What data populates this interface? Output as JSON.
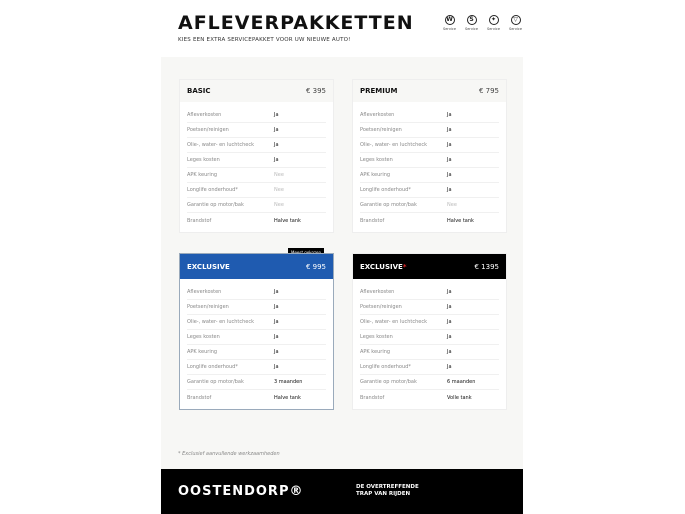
{
  "header": {
    "title": "AFLEVERPAKKETTEN",
    "subtitle": "KIES EEN EXTRA SERVICEPAKKET VOOR UW NIEUWE AUTO!"
  },
  "brands": [
    {
      "icon": "vw-logo-icon",
      "glyph": "W",
      "label": "Service"
    },
    {
      "icon": "seat-logo-icon",
      "glyph": "S",
      "label": "Service"
    },
    {
      "icon": "skoda-logo-icon",
      "glyph": "✦",
      "label": "Service"
    },
    {
      "icon": "cupra-logo-icon",
      "glyph": "▽",
      "label": "Service"
    }
  ],
  "labels": [
    "Afleverkosten",
    "Poetsen/reinigen",
    "Olie-, water- en luchtcheck",
    "Leges kosten",
    "APK keuring",
    "Longlife onderhoud*",
    "Garantie op motor/bak",
    "Brandstof"
  ],
  "packages": [
    {
      "name": "BASIC",
      "price": "€ 395",
      "values": [
        "Ja",
        "Ja",
        "Ja",
        "Ja",
        "Nee",
        "Nee",
        "Nee",
        "Halve tank"
      ]
    },
    {
      "name": "PREMIUM",
      "price": "€ 795",
      "values": [
        "Ja",
        "Ja",
        "Ja",
        "Ja",
        "Ja",
        "Ja",
        "Nee",
        "Halve tank"
      ]
    },
    {
      "name": "EXCLUSIVE",
      "price": "€ 995",
      "badge": "Meest gekozen",
      "values": [
        "Ja",
        "Ja",
        "Ja",
        "Ja",
        "Ja",
        "Ja",
        "3 maanden",
        "Halve tank"
      ]
    },
    {
      "name": "EXCLUSIVE",
      "star": "*",
      "price": "€ 1395",
      "values": [
        "Ja",
        "Ja",
        "Ja",
        "Ja",
        "Ja",
        "Ja",
        "6 maanden",
        "Volle tank"
      ]
    }
  ],
  "colors": {
    "exclusive": "#1f5bb0",
    "exclusive_plus": "#000000",
    "star": "#e02a2a"
  },
  "note": "* Exclusief aanvullende werkzaamheden",
  "footer": {
    "logo": "OOSTENDORP®",
    "tagline_1": "DE OVERTREFFENDE",
    "tagline_2": "TRAP VAN RIJDEN"
  }
}
